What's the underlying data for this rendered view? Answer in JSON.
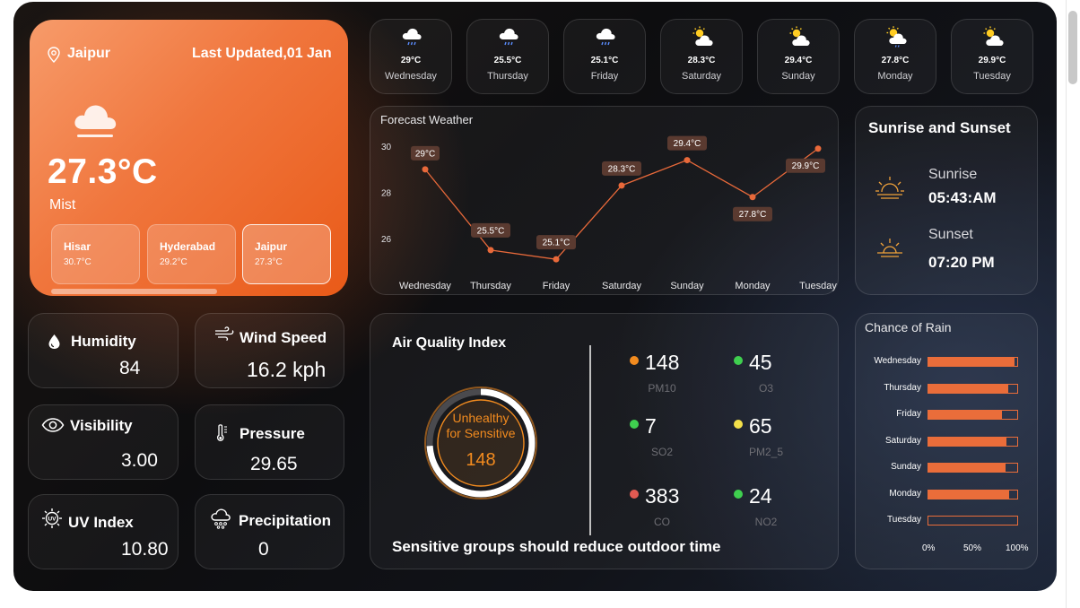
{
  "location": {
    "city": "Jaipur",
    "last_updated": "Last Updated,01 Jan",
    "temperature": "27.3°C",
    "condition": "Mist",
    "cities": [
      {
        "name": "Hisar",
        "temp": "30.7°C",
        "active": false
      },
      {
        "name": "Hyderabad",
        "temp": "29.2°C",
        "active": false
      },
      {
        "name": "Jaipur",
        "temp": "27.3°C",
        "active": true
      }
    ]
  },
  "stats": {
    "humidity": {
      "label": "Humidity",
      "value": "84"
    },
    "wind": {
      "label": "Wind Speed",
      "value": "16.2 kph"
    },
    "visibility": {
      "label": "Visibility",
      "value": "3.00"
    },
    "pressure": {
      "label": "Pressure",
      "value": "29.65"
    },
    "uv": {
      "label": "UV Index",
      "value": "10.80"
    },
    "precipitation": {
      "label": "Precipitation",
      "value": "0"
    }
  },
  "daily": [
    {
      "temp": "29°C",
      "day": "Wednesday",
      "icon": "rain-cloud-icon"
    },
    {
      "temp": "25.5°C",
      "day": "Thursday",
      "icon": "rain-cloud-icon"
    },
    {
      "temp": "25.1°C",
      "day": "Friday",
      "icon": "rain-cloud-icon"
    },
    {
      "temp": "28.3°C",
      "day": "Saturday",
      "icon": "partly-sunny-icon"
    },
    {
      "temp": "29.4°C",
      "day": "Sunday",
      "icon": "partly-sunny-icon"
    },
    {
      "temp": "27.8°C",
      "day": "Monday",
      "icon": "partly-sunny-rain-icon"
    },
    {
      "temp": "29.9°C",
      "day": "Tuesday",
      "icon": "partly-sunny-icon"
    }
  ],
  "sun": {
    "title": "Sunrise and Sunset",
    "sunrise_label": "Sunrise",
    "sunrise": "05:43:AM",
    "sunset_label": "Sunset",
    "sunset": "07:20 PM"
  },
  "aqi": {
    "title": "Air Quality Index",
    "value": "148",
    "category_line1": "Unhealthy",
    "category_line2": "for Sensitive",
    "gauge_fraction": 0.74,
    "advice": "Sensitive groups should reduce outdoor time",
    "pollutants": [
      {
        "value": "148",
        "name": "PM10",
        "color": "#f28b1f"
      },
      {
        "value": "45",
        "name": "O3",
        "color": "#3fcf4f"
      },
      {
        "value": "7",
        "name": "SO2",
        "color": "#3fcf4f"
      },
      {
        "value": "65",
        "name": "PM2_5",
        "color": "#f3e04a"
      },
      {
        "value": "383",
        "name": "CO",
        "color": "#e15a52"
      },
      {
        "value": "24",
        "name": "NO2",
        "color": "#3fcf4f"
      }
    ]
  },
  "chart_data": [
    {
      "type": "line",
      "title": "Forecast Weather",
      "categories": [
        "Wednesday",
        "Thursday",
        "Friday",
        "Saturday",
        "Sunday",
        "Monday",
        "Tuesday"
      ],
      "values": [
        29,
        25.5,
        25.1,
        28.3,
        29.4,
        27.8,
        29.9
      ],
      "data_labels": [
        "29°C",
        "25.5°C",
        "25.1°C",
        "28.3°C",
        "29.4°C",
        "27.8°C",
        "29.9°C"
      ],
      "yticks": [
        "30",
        "28",
        "26"
      ],
      "ylim": [
        24.6,
        30.2
      ],
      "grid": false,
      "color": "#e8693a"
    },
    {
      "type": "bar",
      "title": "Chance of Rain",
      "orientation": "horizontal",
      "categories": [
        "Wednesday",
        "Thursday",
        "Friday",
        "Saturday",
        "Sunday",
        "Monday",
        "Tuesday"
      ],
      "values": [
        97,
        90,
        83,
        88,
        87,
        91,
        0
      ],
      "xticks": [
        "0%",
        "50%",
        "100%"
      ],
      "xlim": [
        0,
        100
      ],
      "color": "#ea6d3a"
    }
  ]
}
